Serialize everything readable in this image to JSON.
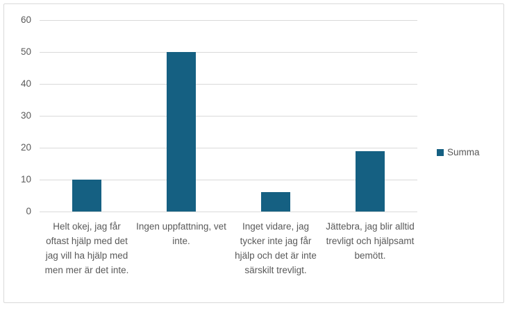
{
  "chart_data": {
    "type": "bar",
    "title": "",
    "xlabel": "",
    "ylabel": "",
    "categories": [
      "Helt okej, jag får oftast hjälp med det jag vill ha hjälp med men mer är det inte.",
      "Ingen uppfattning, vet inte.",
      "Inget vidare, jag tycker inte jag får hjälp och det är inte särskilt trevligt.",
      "Jättebra, jag blir alltid trevligt och hjälpsamt bemött."
    ],
    "series": [
      {
        "name": "Summa",
        "values": [
          10,
          50,
          6,
          19
        ]
      }
    ],
    "ylim": [
      0,
      60
    ],
    "yticks": [
      0,
      10,
      20,
      30,
      40,
      50,
      60
    ],
    "grid": true,
    "legend_position": "right"
  },
  "colors": {
    "bar": "#156082",
    "grid": "#d9d9d9",
    "axis_text": "#595959",
    "frame_border": "#d9d9d9",
    "background": "#ffffff"
  }
}
